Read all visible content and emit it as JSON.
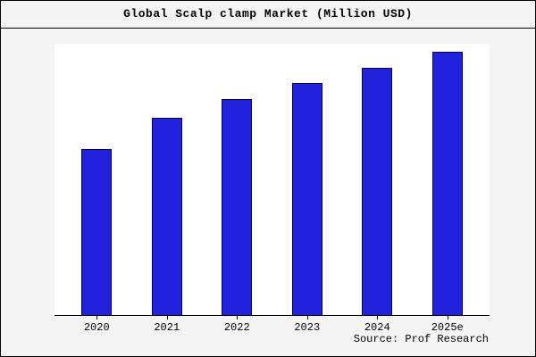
{
  "title": "Global Scalp clamp Market (Million USD)",
  "source": "Source: Prof Research",
  "colors": {
    "figure_background": "#f4f4f4",
    "plot_background": "#ffffff",
    "bar_fill": "#2222dd",
    "bar_border": "#000066",
    "axis": "#000000"
  },
  "chart_data": {
    "type": "bar",
    "title": "Global Scalp clamp Market (Million USD)",
    "categories": [
      "2020",
      "2021",
      "2022",
      "2023",
      "2024",
      "2025e"
    ],
    "values": [
      63,
      75,
      82,
      88,
      94,
      100
    ],
    "xlabel": "",
    "ylabel": "",
    "ylim": [
      0,
      103
    ],
    "grid": false,
    "legend": false,
    "annotation": "Source: Prof Research",
    "bar_color": "#2222dd",
    "bar_border_color": "#000066"
  }
}
